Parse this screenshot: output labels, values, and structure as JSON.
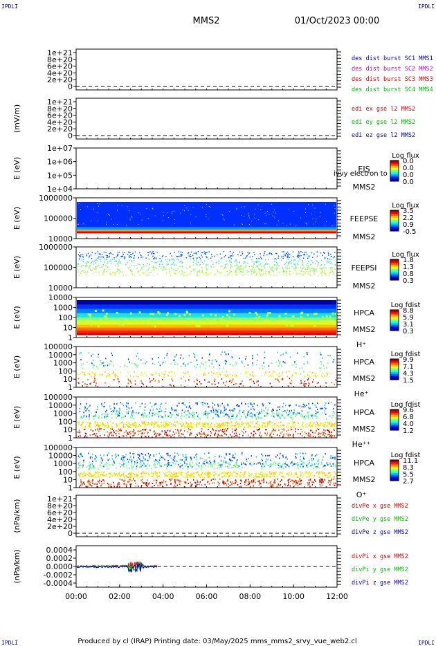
{
  "header": {
    "corner_tl": "IPDLI",
    "corner_tr": "IPDLI",
    "corner_bl": "IPDLI",
    "corner_br": "IPDLI",
    "spacecraft": "MMS2",
    "date": "01/Oct/2023 00:00"
  },
  "footer": {
    "text": "Produced by cl (IRAP)   Printing date: 03/May/2025   mms_mms2_srvy_vue_web2.cl"
  },
  "colors": {
    "red": "#dd0000",
    "magenta": "#cc00cc",
    "green": "#00bb00",
    "blue": "#0000cc"
  },
  "chart_data": [
    {
      "id": "des",
      "type": "line",
      "ylabel": "",
      "yticks": [
        "1e+21",
        "8e+20",
        "6e+20",
        "4e+20",
        "2e+20",
        "0"
      ],
      "legend": [
        {
          "text": "des dist burst SC1 MMS1",
          "color": "blue"
        },
        {
          "text": "des dist burst SC2 MMS2",
          "color": "magenta"
        },
        {
          "text": "des dist burst SC3 MMS3",
          "color": "red"
        },
        {
          "text": "des dist burst SC4 MMS4",
          "color": "green"
        }
      ],
      "dashed_zero": true
    },
    {
      "id": "edi",
      "type": "line",
      "ylabel": "(mV/m)",
      "yticks": [
        "1e+21",
        "8e+20",
        "6e+20",
        "4e+20",
        "2e+20",
        "0"
      ],
      "legend": [
        {
          "text": "edi ex gse l2 MMS2",
          "color": "red"
        },
        {
          "text": "edi ey gse l2 MMS2",
          "color": "green"
        },
        {
          "text": "edi ez gse l2 MMS2",
          "color": "blue"
        }
      ],
      "dashed_zero": true
    },
    {
      "id": "eis",
      "type": "heatmap",
      "ylabel": "E (eV)",
      "yticks": [
        "1e+07",
        "1e+06",
        "1e+05",
        "1e+04"
      ],
      "instrument": "EIS",
      "sc": "MMS2",
      "species": "",
      "overlay": "ivvy electron to",
      "colorbar_title": "Log flux",
      "colorbar_ticks": [
        "0.0",
        "0.0",
        "0.0",
        "0.0"
      ]
    },
    {
      "id": "feepse",
      "type": "heatmap",
      "ylabel": "E (eV)",
      "yticks": [
        "1000000",
        "100000",
        "10000"
      ],
      "instrument": "FEEPSE",
      "sc": "MMS2",
      "species": "",
      "colorbar_title": "Log flux",
      "colorbar_ticks": [
        "3.5",
        "2.2",
        "0.9",
        "-0.5"
      ]
    },
    {
      "id": "feepsi",
      "type": "heatmap",
      "ylabel": "E (eV)",
      "yticks": [
        "1000000",
        "100000",
        "10000"
      ],
      "instrument": "FEEPSI",
      "sc": "MMS2",
      "species": "",
      "colorbar_title": "Log flux",
      "colorbar_ticks": [
        "1.8",
        "1.3",
        "0.8",
        "0.3"
      ]
    },
    {
      "id": "hpca_h",
      "type": "heatmap",
      "ylabel": "E (eV)",
      "yticks": [
        "10000",
        "1000",
        "100",
        "10",
        "1"
      ],
      "instrument": "HPCA",
      "sc": "MMS2",
      "species": "H⁺",
      "colorbar_title": "Log fdist",
      "colorbar_ticks": [
        "8.8",
        "5.9",
        "3.1",
        "0.3"
      ]
    },
    {
      "id": "hpca_he",
      "type": "heatmap",
      "ylabel": "E (eV)",
      "yticks": [
        "100000",
        "10000",
        "1000",
        "100",
        "10",
        "1"
      ],
      "instrument": "HPCA",
      "sc": "MMS2",
      "species": "He⁺",
      "colorbar_title": "Log fdist",
      "colorbar_ticks": [
        "9.9",
        "7.1",
        "4.3",
        "1.5"
      ]
    },
    {
      "id": "hpca_he2",
      "type": "heatmap",
      "ylabel": "E (eV)",
      "yticks": [
        "100000",
        "10000",
        "1000",
        "100",
        "10",
        "1"
      ],
      "instrument": "HPCA",
      "sc": "MMS2",
      "species": "He⁺⁺",
      "colorbar_title": "Log fdist",
      "colorbar_ticks": [
        "9.6",
        "6.8",
        "4.0",
        "1.2"
      ]
    },
    {
      "id": "hpca_o",
      "type": "heatmap",
      "ylabel": "E (eV)",
      "yticks": [
        "100000",
        "10000",
        "1000",
        "100",
        "10",
        "1"
      ],
      "instrument": "HPCA",
      "sc": "MMS2",
      "species": "O⁺",
      "colorbar_title": "Log fdist",
      "colorbar_ticks": [
        "11.1",
        "8.3",
        "5.5",
        "2.7"
      ]
    },
    {
      "id": "divpe",
      "type": "line",
      "ylabel": "(nPa/km)",
      "yticks": [
        "1e+21",
        "8e+20",
        "6e+20",
        "4e+20",
        "2e+20",
        "0"
      ],
      "legend": [
        {
          "text": "divPe x gse MMS2",
          "color": "red"
        },
        {
          "text": "divPe y gse MMS2",
          "color": "green"
        },
        {
          "text": "divPe z gse MMS2",
          "color": "blue"
        }
      ],
      "dashed_zero": true
    },
    {
      "id": "divpi",
      "type": "line",
      "ylabel": "(nPa/km)",
      "yticks": [
        "0.0004",
        "0.0002",
        "0.0000",
        "-0.0002",
        "-0.0004"
      ],
      "ylim": [
        -0.0005,
        0.0005
      ],
      "legend": [
        {
          "text": "divPi x gse MMS2",
          "color": "red"
        },
        {
          "text": "divPi y gse MMS2",
          "color": "green"
        },
        {
          "text": "divPi z gse MMS2",
          "color": "blue"
        }
      ],
      "dashed_zero": true,
      "data_extent_hours": [
        0,
        3.75
      ]
    }
  ],
  "xaxis": {
    "ticks": [
      "00:00",
      "02:00",
      "04:00",
      "06:00",
      "08:00",
      "10:00",
      "12:00"
    ],
    "range_hours": [
      0,
      12
    ]
  }
}
